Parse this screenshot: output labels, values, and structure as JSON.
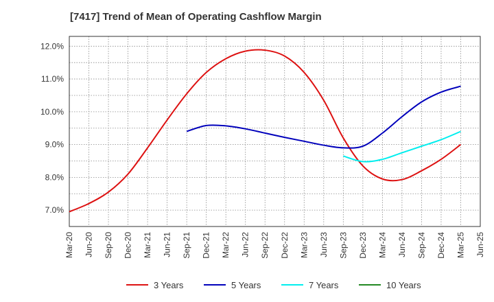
{
  "title": "[7417]  Trend of Mean of Operating Cashflow Margin",
  "chart_data": {
    "type": "line",
    "title": "[7417]  Trend of Mean of Operating Cashflow Margin",
    "xlabel": "",
    "ylabel": "",
    "x_ticks": [
      "Mar-20",
      "Jun-20",
      "Sep-20",
      "Dec-20",
      "Mar-21",
      "Jun-21",
      "Sep-21",
      "Dec-21",
      "Mar-22",
      "Jun-22",
      "Sep-22",
      "Dec-22",
      "Mar-23",
      "Jun-23",
      "Sep-23",
      "Dec-23",
      "Mar-24",
      "Jun-24",
      "Sep-24",
      "Dec-24",
      "Mar-25",
      "Jun-25"
    ],
    "y_ticks": [
      7.0,
      8.0,
      9.0,
      10.0,
      11.0,
      12.0
    ],
    "y_tick_labels": [
      "7.0%",
      "8.0%",
      "9.0%",
      "10.0%",
      "11.0%",
      "12.0%"
    ],
    "ylim": [
      6.5,
      12.3
    ],
    "grid": true,
    "legend_position": "bottom",
    "series": [
      {
        "name": "3 Years",
        "color": "#dd1111",
        "x": [
          "Mar-20",
          "Jun-20",
          "Sep-20",
          "Dec-20",
          "Mar-21",
          "Jun-21",
          "Sep-21",
          "Dec-21",
          "Mar-22",
          "Jun-22",
          "Sep-22",
          "Dec-22",
          "Mar-23",
          "Jun-23",
          "Sep-23",
          "Dec-23",
          "Mar-24",
          "Jun-24",
          "Sep-24",
          "Dec-24",
          "Mar-25"
        ],
        "values": [
          6.95,
          7.2,
          7.55,
          8.1,
          8.9,
          9.75,
          10.55,
          11.2,
          11.62,
          11.85,
          11.88,
          11.7,
          11.2,
          10.35,
          9.2,
          8.35,
          7.95,
          7.93,
          8.2,
          8.55,
          9.0
        ]
      },
      {
        "name": "5 Years",
        "color": "#0000bb",
        "x": [
          "Sep-21",
          "Dec-21",
          "Mar-22",
          "Jun-22",
          "Sep-22",
          "Dec-22",
          "Mar-23",
          "Jun-23",
          "Sep-23",
          "Dec-23",
          "Mar-24",
          "Jun-24",
          "Sep-24",
          "Dec-24",
          "Mar-25"
        ],
        "values": [
          9.4,
          9.58,
          9.57,
          9.48,
          9.35,
          9.22,
          9.1,
          8.98,
          8.9,
          8.95,
          9.35,
          9.85,
          10.3,
          10.6,
          10.78
        ]
      },
      {
        "name": "7 Years",
        "color": "#00eeee",
        "x": [
          "Sep-23",
          "Dec-23",
          "Mar-24",
          "Jun-24",
          "Sep-24",
          "Dec-24",
          "Mar-25"
        ],
        "values": [
          8.65,
          8.48,
          8.55,
          8.75,
          8.95,
          9.15,
          9.4
        ]
      },
      {
        "name": "10 Years",
        "color": "#228822",
        "x": [],
        "values": []
      }
    ]
  }
}
